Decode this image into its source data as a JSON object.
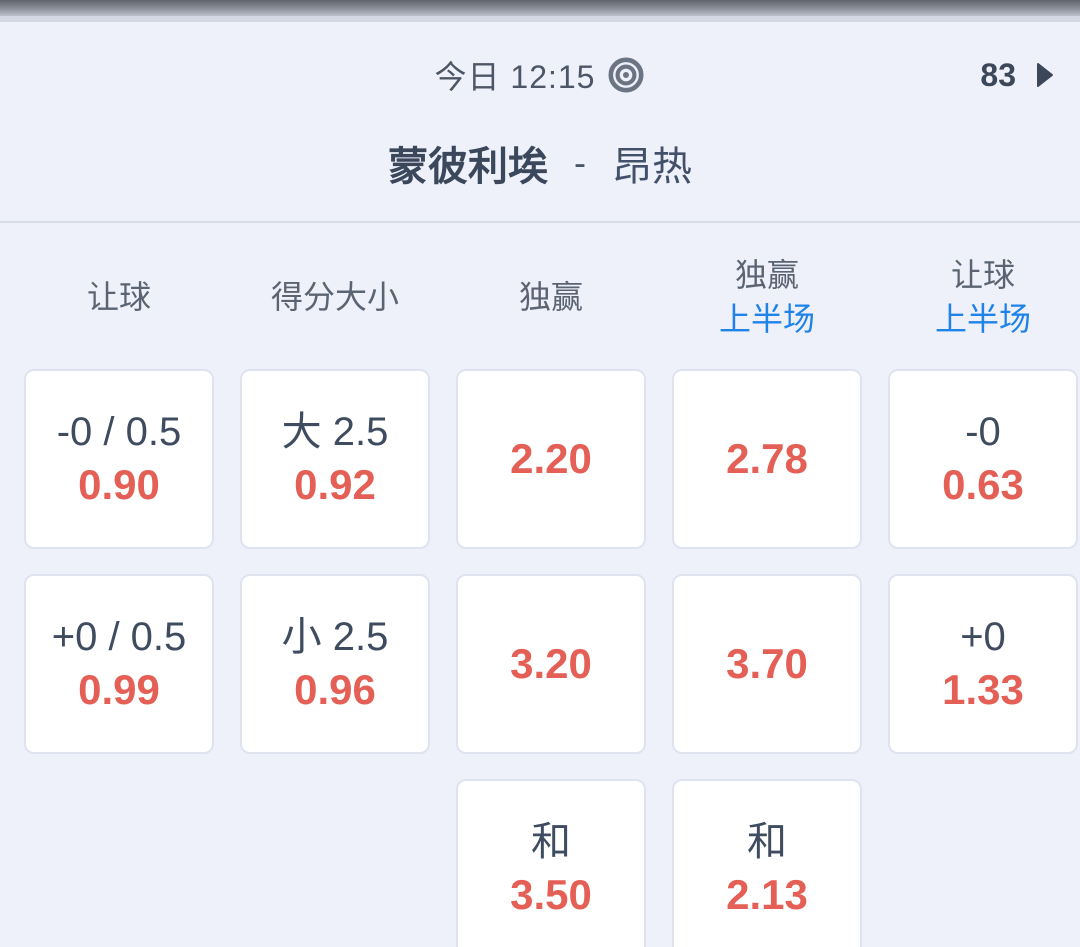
{
  "topbar": {
    "match_time": "今日 12:15",
    "more_markets_count": "83"
  },
  "match": {
    "home_team": "蒙彼利埃",
    "separator": "-",
    "away_team": "昂热"
  },
  "market_columns": [
    {
      "label": "让球",
      "sublabel": ""
    },
    {
      "label": "得分大小",
      "sublabel": ""
    },
    {
      "label": "独赢",
      "sublabel": ""
    },
    {
      "label": "独赢",
      "sublabel": "上半场"
    },
    {
      "label": "让球",
      "sublabel": "上半场"
    }
  ],
  "odds_grid": {
    "rows": [
      [
        {
          "line1": "-0 / 0.5",
          "odds": "0.90"
        },
        {
          "line1": "大 2.5",
          "odds": "0.92"
        },
        {
          "line1": "",
          "odds": "2.20"
        },
        {
          "line1": "",
          "odds": "2.78"
        },
        {
          "line1": "-0",
          "odds": "0.63"
        }
      ],
      [
        {
          "line1": "+0 / 0.5",
          "odds": "0.99"
        },
        {
          "line1": "小 2.5",
          "odds": "0.96"
        },
        {
          "line1": "",
          "odds": "3.20"
        },
        {
          "line1": "",
          "odds": "3.70"
        },
        {
          "line1": "+0",
          "odds": "1.33"
        }
      ],
      [
        null,
        null,
        {
          "line1": "和",
          "odds": "3.50"
        },
        {
          "line1": "和",
          "odds": "2.13"
        },
        null
      ]
    ]
  },
  "icons": {
    "bullseye": "bullseye-icon",
    "chevron_right": "chevron-right-icon"
  },
  "colors": {
    "background": "#eef1fa",
    "odds_red": "#e45f55",
    "sublabel_blue": "#1f83e8",
    "dark_text": "#3f4c60",
    "header_gray": "#5b6472",
    "card_border": "#dfe3ef"
  }
}
